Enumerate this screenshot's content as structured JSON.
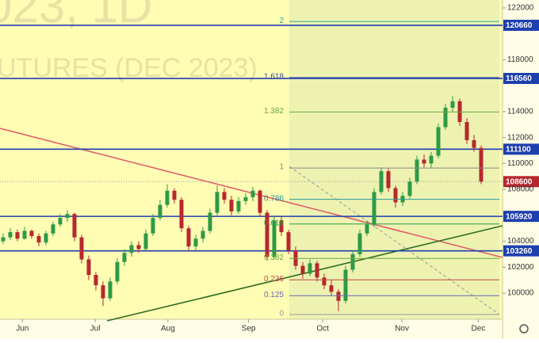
{
  "chart_data": {
    "type": "candlestick",
    "watermark": [
      "023, 1D",
      "UTURES (DEC 2023)"
    ],
    "ylim": [
      97983,
      122611
    ],
    "yticks": [
      100000,
      102000,
      104000,
      108000,
      110000,
      112000,
      114000,
      118000,
      122000
    ],
    "xlim": [
      -0.44,
      70
    ],
    "xticks": [
      {
        "value": 2.7,
        "label": "Jun"
      },
      {
        "value": 12.9,
        "label": "Jul"
      },
      {
        "value": 23.1,
        "label": "Aug"
      },
      {
        "value": 34.4,
        "label": "Sep"
      },
      {
        "value": 44.8,
        "label": "Oct"
      },
      {
        "value": 55.9,
        "label": "Nov"
      },
      {
        "value": 66.6,
        "label": "Dec"
      }
    ],
    "up_color": "#2e9a47",
    "down_color": "#b7282e",
    "candles": [
      [
        104000,
        104600,
        103800,
        104300
      ],
      [
        104300,
        105000,
        104100,
        104700
      ],
      [
        104700,
        104900,
        104000,
        104200
      ],
      [
        104200,
        105100,
        104100,
        104800
      ],
      [
        104800,
        104900,
        104200,
        104400
      ],
      [
        104400,
        104600,
        103600,
        103900
      ],
      [
        103900,
        104800,
        103700,
        104600
      ],
      [
        104600,
        105500,
        104400,
        105300
      ],
      [
        105300,
        106100,
        105100,
        105800
      ],
      [
        105800,
        106400,
        105500,
        106100
      ],
      [
        106100,
        106200,
        104000,
        104300
      ],
      [
        104300,
        104500,
        102300,
        102600
      ],
      [
        102600,
        102900,
        101000,
        101400
      ],
      [
        101400,
        101600,
        100200,
        100600
      ],
      [
        100600,
        100900,
        99000,
        99600
      ],
      [
        99600,
        101200,
        99400,
        100900
      ],
      [
        100900,
        102700,
        100700,
        102400
      ],
      [
        102400,
        103400,
        102100,
        103100
      ],
      [
        103100,
        104000,
        102800,
        103700
      ],
      [
        103700,
        104000,
        103100,
        103400
      ],
      [
        103400,
        104900,
        103300,
        104600
      ],
      [
        104600,
        106100,
        104400,
        105800
      ],
      [
        105800,
        107200,
        105600,
        106800
      ],
      [
        106800,
        108400,
        106600,
        107900
      ],
      [
        107900,
        108100,
        106900,
        107200
      ],
      [
        107200,
        107400,
        104700,
        105000
      ],
      [
        105000,
        105200,
        103200,
        103600
      ],
      [
        103600,
        104500,
        103300,
        104200
      ],
      [
        104200,
        105100,
        103900,
        104800
      ],
      [
        104800,
        106500,
        104600,
        106200
      ],
      [
        106200,
        108300,
        106000,
        107800
      ],
      [
        107800,
        108100,
        106900,
        107200
      ],
      [
        107200,
        107500,
        106000,
        106300
      ],
      [
        106300,
        107400,
        106100,
        107100
      ],
      [
        107100,
        107700,
        106800,
        107400
      ],
      [
        107400,
        108200,
        107100,
        107900
      ],
      [
        107900,
        108000,
        105900,
        106200
      ],
      [
        106200,
        106400,
        102500,
        102800
      ],
      [
        102800,
        106000,
        102600,
        105600
      ],
      [
        105600,
        105900,
        104400,
        104700
      ],
      [
        104700,
        104900,
        103000,
        103300
      ],
      [
        103300,
        103600,
        101800,
        102100
      ],
      [
        102100,
        102400,
        101100,
        101500
      ],
      [
        101500,
        102600,
        101300,
        102300
      ],
      [
        102300,
        102500,
        100900,
        101200
      ],
      [
        101200,
        101500,
        100300,
        100600
      ],
      [
        100600,
        101000,
        99800,
        100100
      ],
      [
        100100,
        100300,
        98600,
        99400
      ],
      [
        99400,
        102100,
        99200,
        101800
      ],
      [
        101800,
        103300,
        101600,
        103000
      ],
      [
        103000,
        104900,
        102800,
        104600
      ],
      [
        104600,
        105600,
        104400,
        105300
      ],
      [
        105300,
        108100,
        105100,
        107800
      ],
      [
        107800,
        109700,
        107600,
        109400
      ],
      [
        109400,
        109600,
        107800,
        108100
      ],
      [
        108100,
        108300,
        106600,
        107000
      ],
      [
        107000,
        107800,
        106700,
        107500
      ],
      [
        107500,
        108900,
        107300,
        108600
      ],
      [
        108600,
        110600,
        108400,
        110300
      ],
      [
        110300,
        110700,
        109700,
        110000
      ],
      [
        110000,
        110900,
        109600,
        110600
      ],
      [
        110600,
        113100,
        110400,
        112800
      ],
      [
        112800,
        114600,
        112600,
        114300
      ],
      [
        114300,
        115200,
        114000,
        114800
      ],
      [
        114800,
        115000,
        112900,
        113200
      ],
      [
        113200,
        113500,
        111500,
        111800
      ],
      [
        111800,
        112200,
        110900,
        111200
      ],
      [
        111200,
        111400,
        108400,
        108600
      ]
    ],
    "levels": [
      120660,
      116560,
      111100,
      105920,
      103260
    ],
    "level_color": "#1e3fae",
    "last_price": 108600,
    "last_color": "#b7282e",
    "fib": [
      {
        "level": 0,
        "price": 98350,
        "color": "#9a9a9a"
      },
      {
        "level": 0.125,
        "price": 99800,
        "color": "#6a6ab8"
      },
      {
        "level": 0.236,
        "price": 101020,
        "color": "#b84a4a"
      },
      {
        "level": 0.382,
        "price": 102670,
        "color": "#6ea83a"
      },
      {
        "level": 0.618,
        "price": 105330,
        "color": "#2c9a4a"
      },
      {
        "level": 0.786,
        "price": 107230,
        "color": "#2a9a9a"
      },
      {
        "level": 1,
        "price": 109650,
        "color": "#8a8a8a"
      },
      {
        "level": 1.382,
        "price": 113970,
        "color": "#6ea83a"
      },
      {
        "level": 1.618,
        "price": 116630,
        "color": "#3b4aa8"
      },
      {
        "level": 2,
        "price": 120950,
        "color": "#2cab8c"
      }
    ]
  }
}
